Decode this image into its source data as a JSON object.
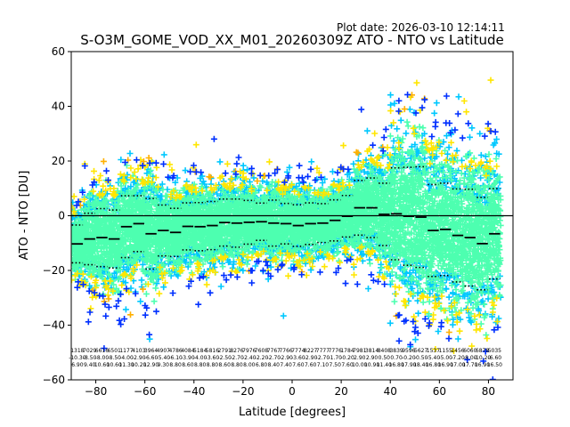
{
  "header": {
    "plot_date": "Plot date: 2026-03-10 12:14:11",
    "title": "S-O3M_GOME_VOD_XX_M01_20260309Z ATO - NTO vs Latitude"
  },
  "chart_data": {
    "type": "scatter",
    "title": "S-O3M_GOME_VOD_XX_M01_20260309Z ATO - NTO vs Latitude",
    "xlabel": "Latitude [degrees]",
    "ylabel": "ATO - NTO [DU]",
    "xlim": [
      -90,
      90
    ],
    "ylim": [
      -60,
      60
    ],
    "xticks": [
      -80,
      -60,
      -40,
      -20,
      0,
      20,
      40,
      60,
      80
    ],
    "yticks": [
      -60,
      -40,
      -20,
      0,
      20,
      40,
      60
    ],
    "xtick_labels": [
      "−80",
      "−60",
      "−40",
      "−20",
      "0",
      "20",
      "40",
      "60",
      "80"
    ],
    "ytick_labels": [
      "−60",
      "−40",
      "−20",
      "0",
      "20",
      "40",
      "60"
    ],
    "grid": false,
    "legend": "none",
    "zero_line": 0,
    "colors": {
      "density_low": "#00c8ff",
      "density_mid": "#4dffb0",
      "density_high": "#ffe600",
      "density_peak": "#ffb000",
      "outlier_blue": "#0030ff",
      "mean_marker": "#000000",
      "zero_line": "#000000"
    },
    "bins": [
      {
        "lat": -87.5,
        "mean": -10.3,
        "std": 6.9,
        "count": "1318"
      },
      {
        "lat": -82.5,
        "mean": -8.5,
        "std": 9.4,
        "count": "7029"
      },
      {
        "lat": -77.5,
        "mean": -8.0,
        "std": 10.6,
        "count": "6616"
      },
      {
        "lat": -72.5,
        "mean": -8.5,
        "std": 10.6,
        "count": "6501"
      },
      {
        "lat": -67.5,
        "mean": -4.0,
        "std": 11.3,
        "count": "1177"
      },
      {
        "lat": -62.5,
        "mean": -2.9,
        "std": 10.2,
        "count": "4103"
      },
      {
        "lat": -57.5,
        "mean": -6.6,
        "std": 12.9,
        "count": "3964"
      },
      {
        "lat": -52.5,
        "mean": -5.4,
        "std": 9.3,
        "count": "4907"
      },
      {
        "lat": -47.5,
        "mean": -6.1,
        "std": 8.8,
        "count": "4786"
      },
      {
        "lat": -42.5,
        "mean": -3.9,
        "std": 8.6,
        "count": "4084"
      },
      {
        "lat": -37.5,
        "mean": -4.0,
        "std": 8.8,
        "count": "5184"
      },
      {
        "lat": -32.5,
        "mean": -3.6,
        "std": 8.8,
        "count": "5816"
      },
      {
        "lat": -27.5,
        "mean": -2.5,
        "std": 8.6,
        "count": "2791"
      },
      {
        "lat": -22.5,
        "mean": -2.7,
        "std": 8.8,
        "count": "8276"
      },
      {
        "lat": -17.5,
        "mean": -2.4,
        "std": 8.0,
        "count": "7976"
      },
      {
        "lat": -12.5,
        "mean": -2.2,
        "std": 6.8,
        "count": "7608"
      },
      {
        "lat": -7.5,
        "mean": -2.7,
        "std": 8.4,
        "count": "7767"
      },
      {
        "lat": -2.5,
        "mean": -2.9,
        "std": 7.4,
        "count": "7766"
      },
      {
        "lat": 2.5,
        "mean": -3.6,
        "std": 7.6,
        "count": "7774"
      },
      {
        "lat": 7.5,
        "mean": -2.9,
        "std": 7.6,
        "count": "8227"
      },
      {
        "lat": 12.5,
        "mean": -2.7,
        "std": 7.1,
        "count": "7777"
      },
      {
        "lat": 17.5,
        "mean": -1.7,
        "std": 7.5,
        "count": "7776"
      },
      {
        "lat": 22.5,
        "mean": -0.2,
        "std": 7.6,
        "count": "1784"
      },
      {
        "lat": 27.5,
        "mean": 2.9,
        "std": 10.0,
        "count": "7981"
      },
      {
        "lat": 32.5,
        "mean": 2.9,
        "std": 10.9,
        "count": "3814"
      },
      {
        "lat": 37.5,
        "mean": 0.5,
        "std": 11.4,
        "count": "8408"
      },
      {
        "lat": 42.5,
        "mean": 0.7,
        "std": 16.8,
        "count": "3839"
      },
      {
        "lat": 47.5,
        "mean": -0.2,
        "std": 17.9,
        "count": "9596"
      },
      {
        "lat": 52.5,
        "mean": -0.5,
        "std": 18.4,
        "count": "5627"
      },
      {
        "lat": 57.5,
        "mean": -5.4,
        "std": 16.8,
        "count": "1537"
      },
      {
        "lat": 62.5,
        "mean": -5.0,
        "std": 16.9,
        "count": "1155"
      },
      {
        "lat": 67.5,
        "mean": -7.2,
        "std": 17.0,
        "count": "1456"
      },
      {
        "lat": 72.5,
        "mean": -8.0,
        "std": 17.7,
        "count": "6060"
      },
      {
        "lat": 77.5,
        "mean": -10.2,
        "std": 16.9,
        "count": "6878"
      },
      {
        "lat": 82.5,
        "mean": -6.6,
        "std": 16.5,
        "count": "5035"
      }
    ]
  }
}
